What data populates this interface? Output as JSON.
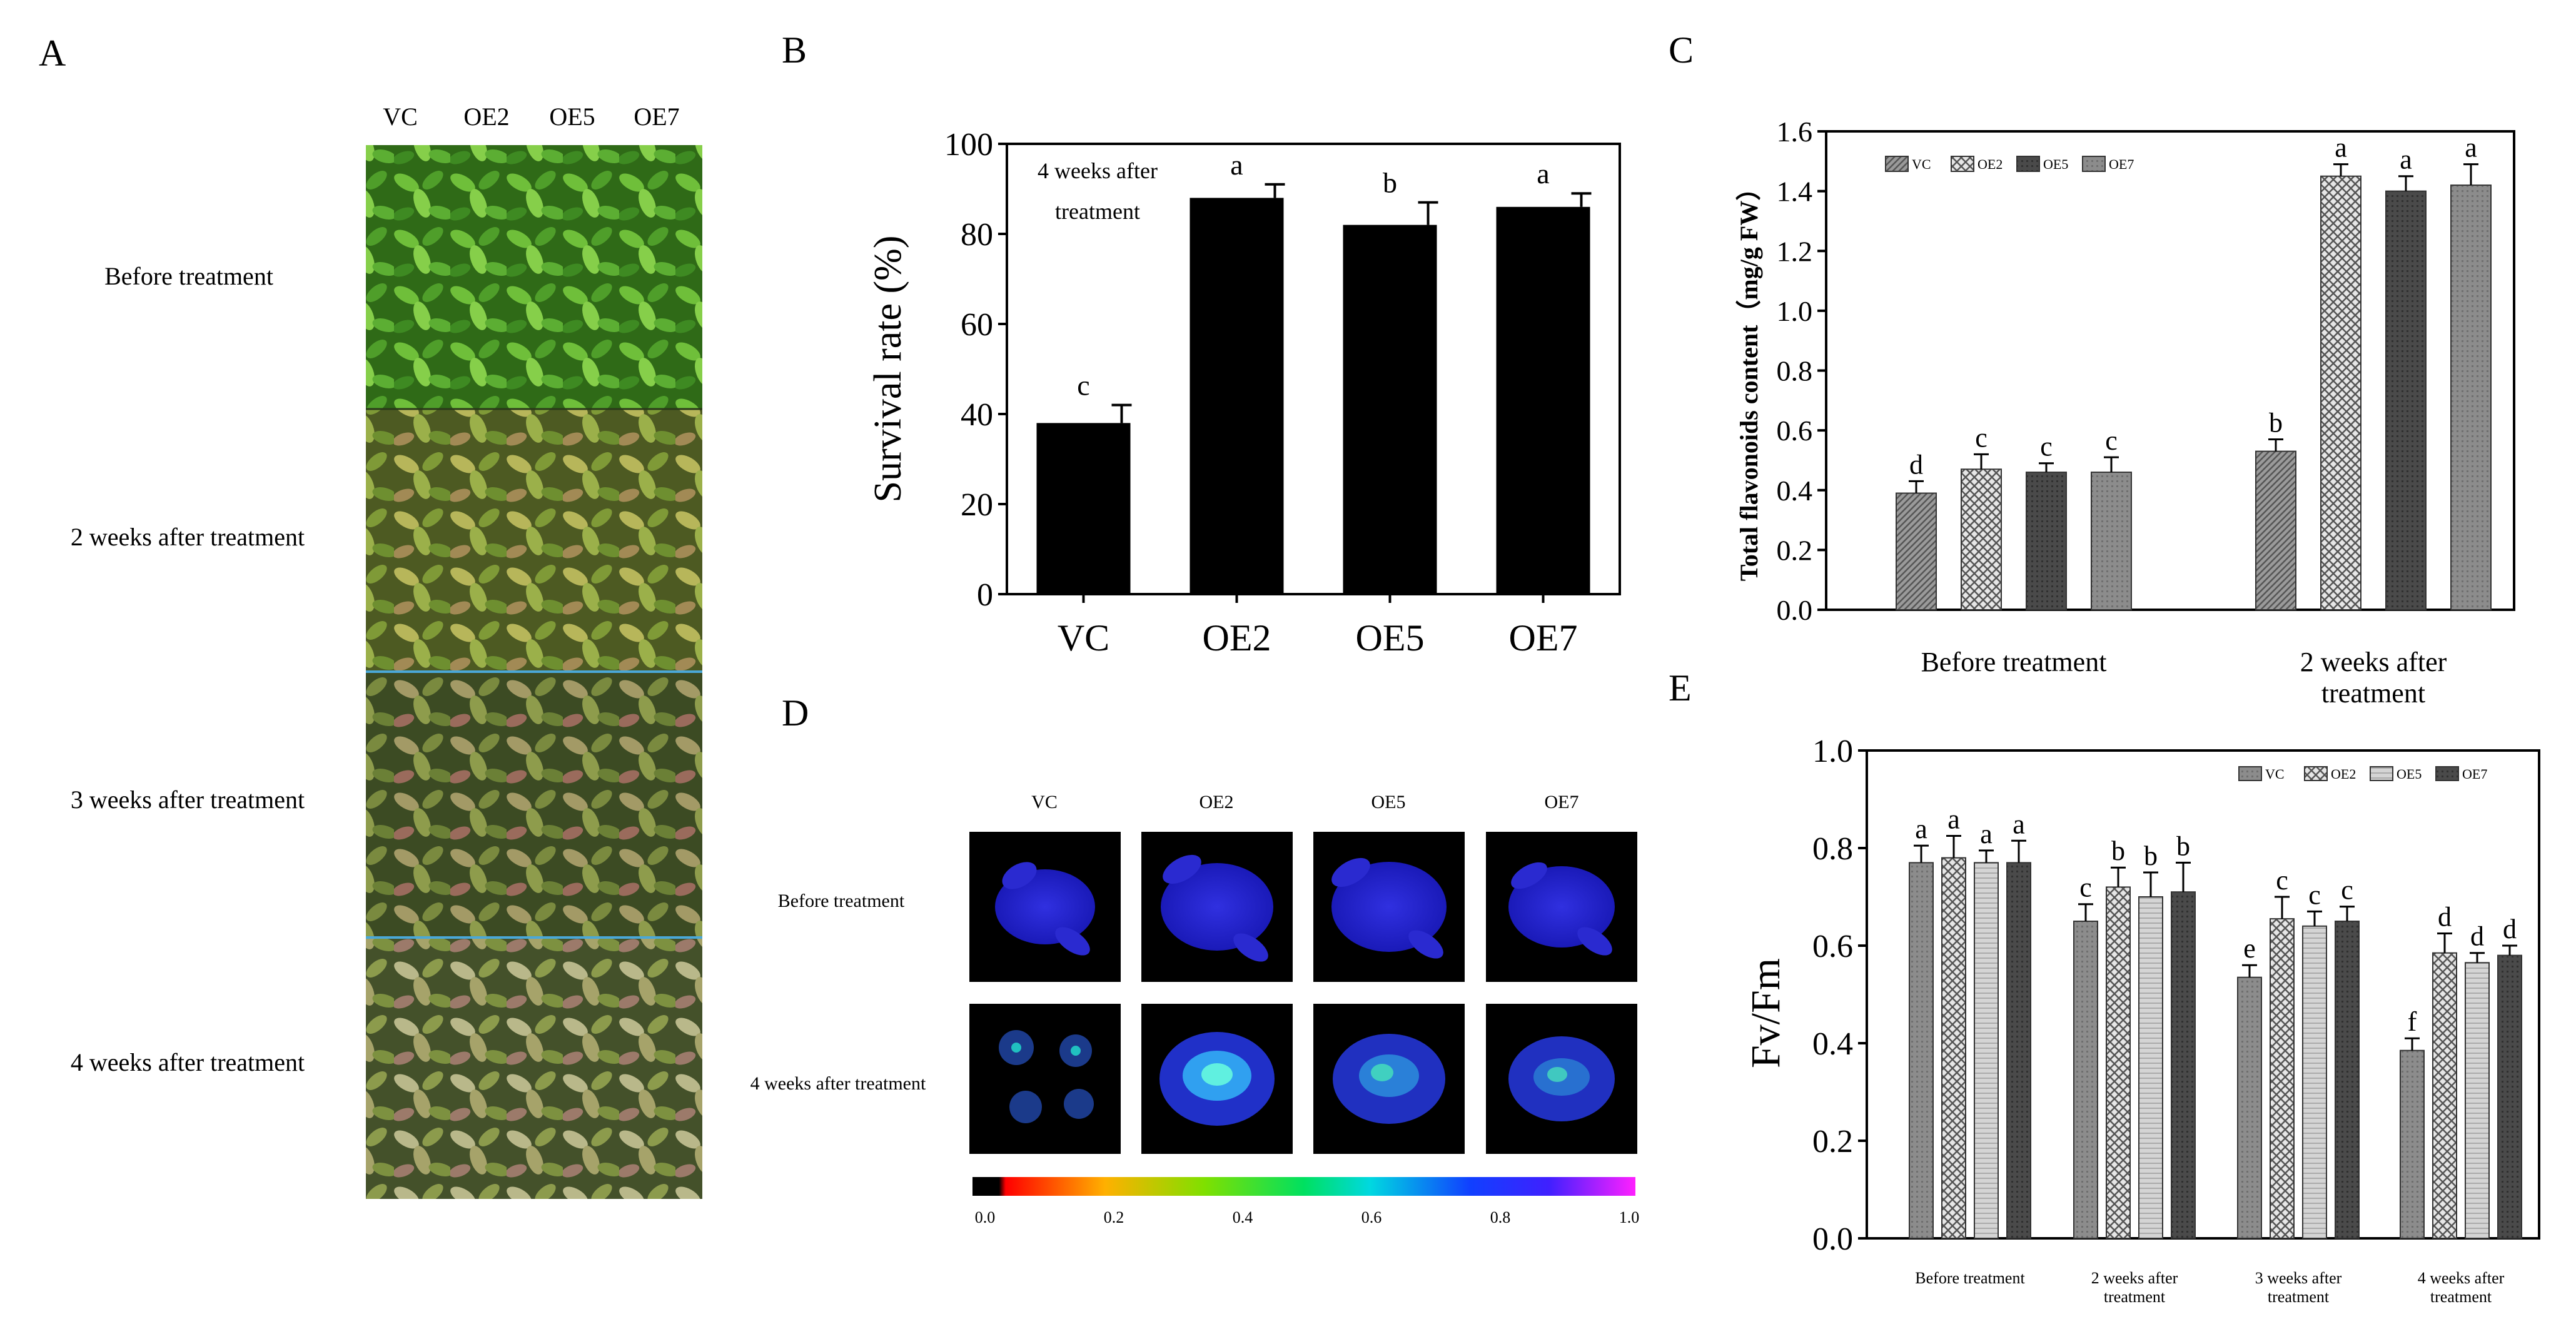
{
  "panels": {
    "A": {
      "letter": "A",
      "columns": [
        "VC",
        "OE2",
        "OE5",
        "OE7"
      ],
      "rows": [
        "Before treatment",
        "2 weeks after treatment",
        "3 weeks after treatment",
        "4 weeks after treatment"
      ]
    },
    "D": {
      "letter": "D",
      "columns": [
        "VC",
        "OE2",
        "OE5",
        "OE7"
      ],
      "rows": [
        "Before treatment",
        "4 weeks after treatment"
      ],
      "colorbar_ticks": [
        "0.0",
        "0.2",
        "0.4",
        "0.6",
        "0.8",
        "1.0"
      ]
    }
  },
  "chart_data": [
    {
      "panel": "B",
      "type": "bar",
      "categories": [
        "VC",
        "OE2",
        "OE5",
        "OE7"
      ],
      "values": [
        38,
        88,
        82,
        86
      ],
      "errors": [
        4,
        3,
        5,
        3
      ],
      "sig_letters": [
        "c",
        "a",
        "b",
        "a"
      ],
      "annotation": [
        "4 weeks after",
        "treatment"
      ],
      "ylabel": "Survival rate (%)",
      "ylim": [
        0,
        100
      ],
      "yticks": [
        "0",
        "20",
        "40",
        "60",
        "80",
        "100"
      ],
      "colors": {
        "bar": "#000000"
      }
    },
    {
      "panel": "C",
      "type": "bar",
      "categories": [
        "Before treatment",
        [
          "2 weeks after",
          "treatment"
        ]
      ],
      "series": [
        {
          "name": "VC",
          "values": [
            0.39,
            0.53
          ],
          "errors": [
            0.04,
            0.04
          ],
          "letters": [
            "d",
            "b"
          ]
        },
        {
          "name": "OE2",
          "values": [
            0.47,
            1.45
          ],
          "errors": [
            0.05,
            0.04
          ],
          "letters": [
            "c",
            "a"
          ]
        },
        {
          "name": "OE5",
          "values": [
            0.46,
            1.4
          ],
          "errors": [
            0.03,
            0.05
          ],
          "letters": [
            "c",
            "a"
          ]
        },
        {
          "name": "OE7",
          "values": [
            0.46,
            1.42
          ],
          "errors": [
            0.05,
            0.07
          ],
          "letters": [
            "c",
            "a"
          ]
        }
      ],
      "ylabel": "Total flavonoids content（mg/g FW）",
      "ylim": [
        0,
        1.6
      ],
      "yticks": [
        "0.0",
        "0.2",
        "0.4",
        "0.6",
        "0.8",
        "1.0",
        "1.2",
        "1.4",
        "1.6"
      ],
      "legend": "top-left"
    },
    {
      "panel": "E",
      "type": "bar",
      "categories": [
        "Before treatment",
        [
          "2 weeks after",
          "treatment"
        ],
        [
          "3 weeks after",
          "treatment"
        ],
        [
          "4 weeks after",
          "treatment"
        ]
      ],
      "series": [
        {
          "name": "VC",
          "values": [
            0.77,
            0.65,
            0.535,
            0.385
          ],
          "errors": [
            0.035,
            0.035,
            0.025,
            0.025
          ],
          "letters": [
            "a",
            "c",
            "e",
            "f"
          ]
        },
        {
          "name": "OE2",
          "values": [
            0.78,
            0.72,
            0.655,
            0.585
          ],
          "errors": [
            0.045,
            0.04,
            0.045,
            0.04
          ],
          "letters": [
            "a",
            "b",
            "c",
            "d"
          ]
        },
        {
          "name": "OE5",
          "values": [
            0.77,
            0.7,
            0.64,
            0.565
          ],
          "errors": [
            0.025,
            0.05,
            0.03,
            0.02
          ],
          "letters": [
            "a",
            "b",
            "c",
            "d"
          ]
        },
        {
          "name": "OE7",
          "values": [
            0.77,
            0.71,
            0.65,
            0.58
          ],
          "errors": [
            0.045,
            0.06,
            0.03,
            0.02
          ],
          "letters": [
            "a",
            "b",
            "c",
            "d"
          ]
        }
      ],
      "ylabel": "Fv/Fm",
      "ylim": [
        0,
        1.0
      ],
      "yticks": [
        "0.0",
        "0.2",
        "0.4",
        "0.6",
        "0.8",
        "1.0"
      ],
      "legend": "top-right"
    }
  ]
}
